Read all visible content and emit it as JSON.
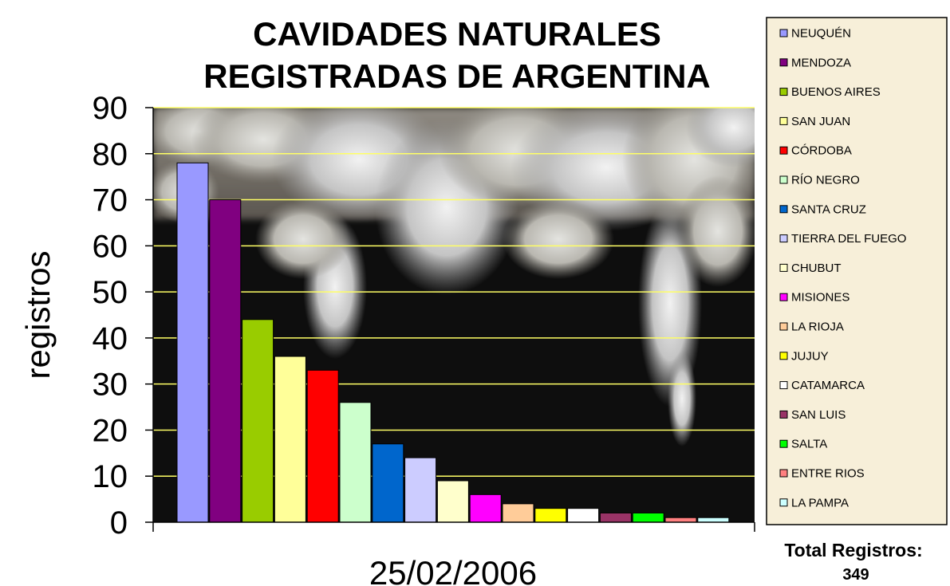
{
  "chart_data": {
    "type": "bar",
    "title_lines": [
      "CAVIDADES NATURALES",
      "REGISTRADAS DE ARGENTINA"
    ],
    "xlabel": "25/02/2006",
    "ylabel": "registros",
    "ylim": [
      0,
      90
    ],
    "yticks": [
      0,
      10,
      20,
      30,
      40,
      50,
      60,
      70,
      80,
      90
    ],
    "grid": true,
    "legend_position": "right",
    "categories": [
      "NEUQUÉN",
      "MENDOZA",
      "BUENOS AIRES",
      "SAN JUAN",
      "CÓRDOBA",
      "RÍO NEGRO",
      "SANTA CRUZ",
      "TIERRA DEL FUEGO",
      "CHUBUT",
      "MISIONES",
      "LA RIOJA",
      "JUJUY",
      "CATAMARCA",
      "SAN LUIS",
      "SALTA",
      "ENTRE RIOS",
      "LA PAMPA"
    ],
    "values": [
      78,
      70,
      44,
      36,
      33,
      26,
      17,
      14,
      9,
      6,
      4,
      3,
      3,
      2,
      2,
      1,
      1
    ],
    "colors": [
      "#9999ff",
      "#800080",
      "#99cc00",
      "#ffff99",
      "#ff0000",
      "#ccffcc",
      "#0066cc",
      "#ccccff",
      "#ffffcc",
      "#ff00ff",
      "#ffcc99",
      "#ffff00",
      "#ffffff",
      "#993366",
      "#00ff00",
      "#ff8080",
      "#ccffff"
    ],
    "total_label": "Total Registros:",
    "total_value": "349",
    "gridline_color": "#ffff66",
    "legend_background": "#f7efd9"
  }
}
